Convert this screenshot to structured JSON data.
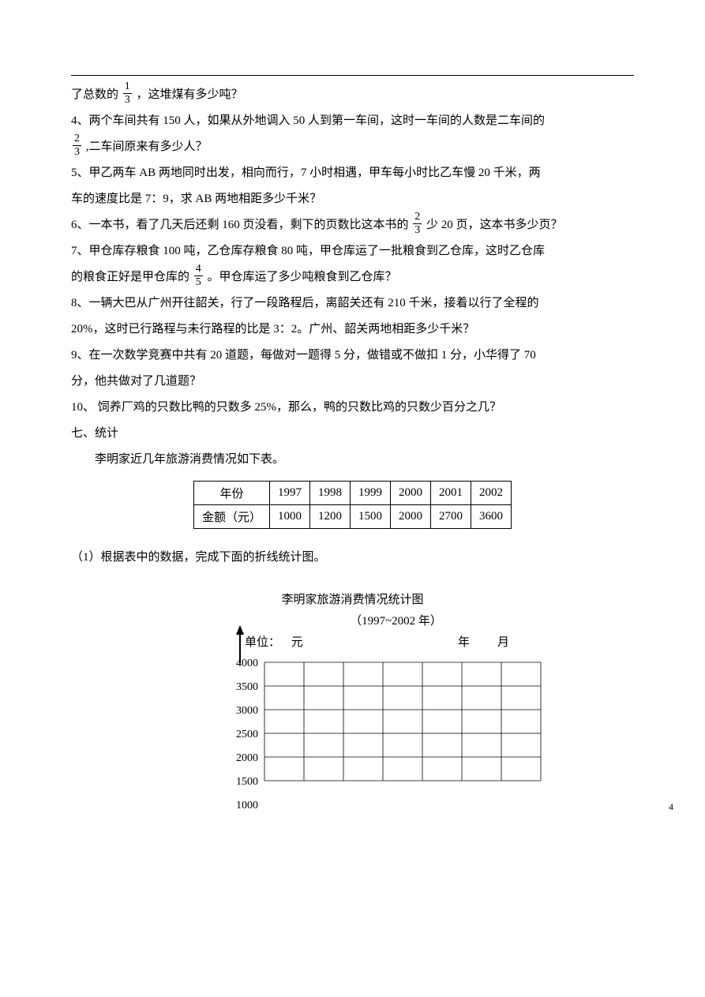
{
  "q3_tail": {
    "prefix": "了总数的",
    "frac_num": "1",
    "frac_den": "3",
    "suffix": "，这堆煤有多少吨？"
  },
  "q4": {
    "l1_pre": "4、两个车间共有 150 人，如果从外地调入 50 人到第一车间，这时一车间的人数是二车间的",
    "frac_num": "2",
    "frac_den": "3",
    "l2": ",二车间原来有多少人？"
  },
  "q5": {
    "l1": "5、甲乙两车 AB 两地同时出发，相向而行，7 小时相遇，甲车每小时比乙车慢 20 千米，两",
    "l2": "车的速度比是 7：9，求 AB 两地相距多少千米？"
  },
  "q6": {
    "pre": "6、一本书，看了几天后还剩 160 页没看，剩下的页数比这本书的",
    "frac_num": "2",
    "frac_den": "3",
    "post": "少 20 页，这本书多少页？"
  },
  "q7": {
    "l1": "7、甲仓库存粮食 100 吨，乙仓库存粮食 80 吨，甲仓库运了一批粮食到乙仓库，这时乙仓库",
    "l2_pre": "的粮食正好是甲仓库的",
    "frac_num": "4",
    "frac_den": "5",
    "l2_post": "。甲仓库运了多少吨粮食到乙仓库？"
  },
  "q8": {
    "l1": "8、一辆大巴从广州开往韶关，行了一段路程后，离韶关还有 210 千米，接着以行了全程的",
    "l2": "20%，这时已行路程与未行路程的比是 3：2。广州、韶关两地相距多少千米？"
  },
  "q9": {
    "l1": "9、在一次数学竞赛中共有 20 道题，每做对一题得 5 分，做错或不做扣 1 分，小华得了 70",
    "l2": "分，他共做对了几道题？"
  },
  "q10": "10、 饲养厂鸡的只数比鸭的只数多 25%，那么，鸭的只数比鸡的只数少百分之几？",
  "section7": "七、统计",
  "intro": "李明家近几年旅游消费情况如下表。",
  "table": {
    "header": [
      "年份",
      "1997",
      "1998",
      "1999",
      "2000",
      "2001",
      "2002"
    ],
    "row_label": "金额（元）",
    "row": [
      "1000",
      "1200",
      "1500",
      "2000",
      "2700",
      "3600"
    ]
  },
  "task1": "（1）根据表中的数据，完成下面的折线统计图。",
  "chart": {
    "title": "李明家旅游消费情况统计图",
    "subtitle": "（1997~2002 年）",
    "unit_label": "单位：",
    "unit_value": "元",
    "year_label": "年",
    "month_label": "月",
    "y_ticks": [
      "4000",
      "3500",
      "3000",
      "2500",
      "2000",
      "1500",
      "1000"
    ],
    "grid_cols": 7,
    "grid_rows": 5,
    "grid_color": "#000000",
    "background_color": "#ffffff",
    "line_width": 0.8,
    "arrow_color": "#000000"
  },
  "page_number": "4"
}
